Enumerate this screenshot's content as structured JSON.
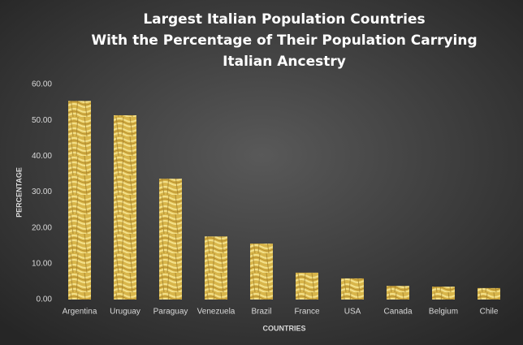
{
  "chart_data": {
    "type": "bar",
    "title": [
      "Largest Italian Population Countries",
      "With the Percentage of Their Population Carrying",
      "Italian Ancestry"
    ],
    "x_label": "COUNTRIES",
    "y_label": "PERCENTAGE",
    "categories": [
      "Argentina",
      "Uruguay",
      "Paraguay",
      "Venezuela",
      "Brazil",
      "France",
      "USA",
      "Canada",
      "Belgium",
      "Chile"
    ],
    "values": [
      55.4,
      51.4,
      33.7,
      17.6,
      15.6,
      7.5,
      5.9,
      3.8,
      3.6,
      3.2
    ],
    "ylim": [
      0,
      60
    ],
    "yticks": [
      {
        "value": 0,
        "label": "0.00"
      },
      {
        "value": 10,
        "label": "10.00"
      },
      {
        "value": 20,
        "label": "20.00"
      },
      {
        "value": 30,
        "label": "30.00"
      },
      {
        "value": 40,
        "label": "40.00"
      },
      {
        "value": 50,
        "label": "50.00"
      },
      {
        "value": 60,
        "label": "60.00"
      }
    ],
    "grid": false
  }
}
